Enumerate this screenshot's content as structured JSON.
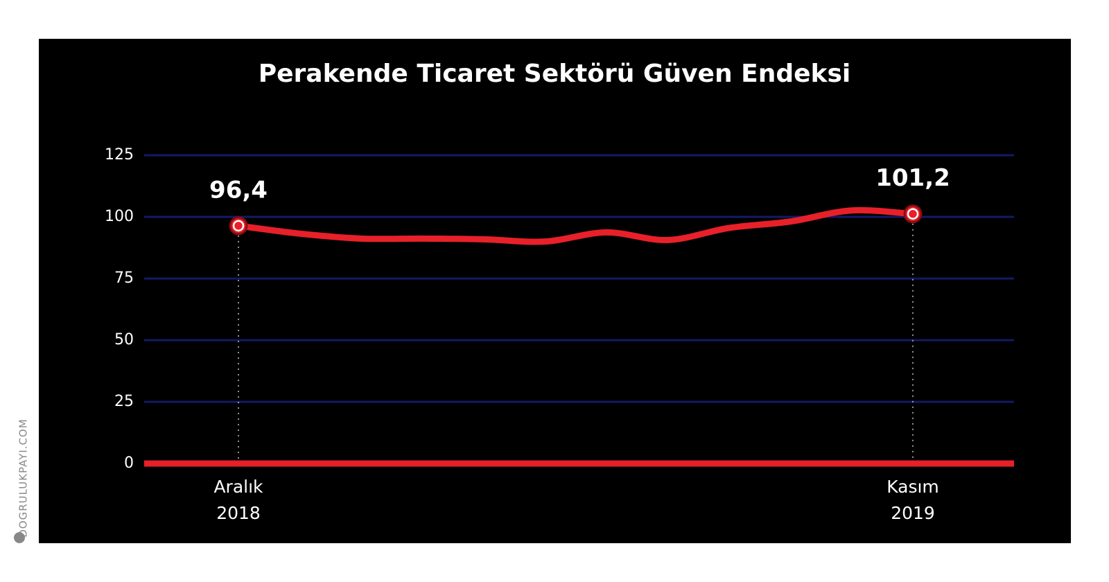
{
  "chart_data": {
    "type": "line",
    "title": "Perakende Ticaret Sektörü Güven Endeksi",
    "categories": [
      "Aralık 2018",
      null,
      null,
      null,
      null,
      null,
      null,
      null,
      null,
      null,
      null,
      "Kasım 2019"
    ],
    "values": [
      96.4,
      93.2,
      91.2,
      91.2,
      90.9,
      90.0,
      93.7,
      90.6,
      95.5,
      98.1,
      102.6,
      101.2
    ],
    "value_labels": [
      "96,4",
      null,
      null,
      null,
      null,
      null,
      null,
      null,
      null,
      null,
      null,
      "101,2"
    ],
    "color": "#e8202a",
    "ylim": [
      0,
      125
    ],
    "yticks": [
      0,
      25,
      50,
      75,
      100,
      125
    ],
    "grid": true,
    "watermark": "DOGRULUKPAYI.COM"
  }
}
